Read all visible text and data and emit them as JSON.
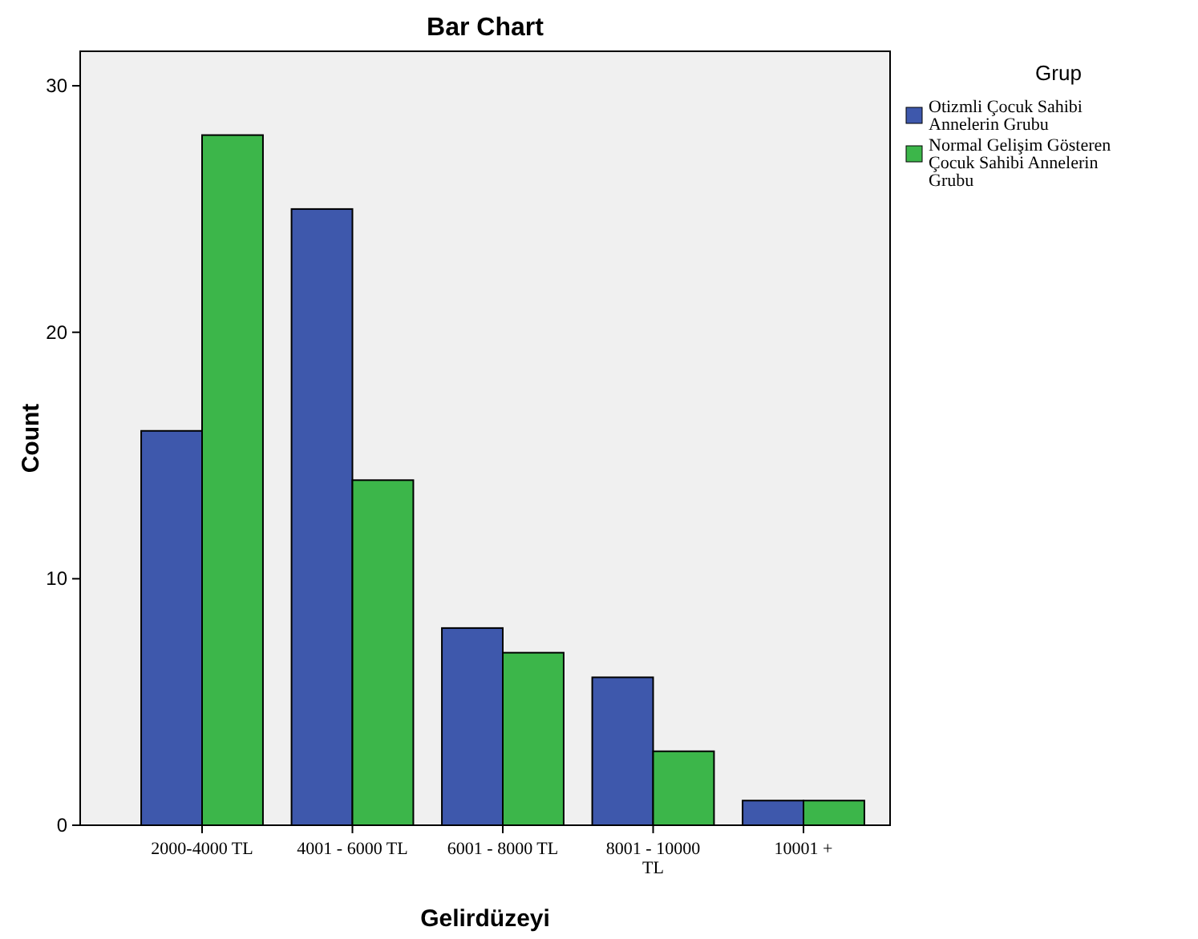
{
  "chart_data": {
    "type": "bar",
    "title": "Bar Chart",
    "xlabel": "Gelirdüzeyi",
    "ylabel": "Count",
    "legend_title": "Grup",
    "categories": [
      "2000-4000 TL",
      "4001 - 6000 TL",
      "6001 - 8000 TL",
      "8001 - 10000 TL",
      "10001 +"
    ],
    "series": [
      {
        "name": "Otizmli Çocuk Sahibi Annelerin Grubu",
        "color": "#3e58ac",
        "values": [
          16,
          25,
          8,
          6,
          1
        ]
      },
      {
        "name": "Normal Gelişim Gösteren Çocuk Sahibi Annelerin Grubu",
        "color": "#3cb64a",
        "values": [
          28,
          14,
          7,
          3,
          1
        ]
      }
    ],
    "ylim": [
      0,
      31.4
    ],
    "yticks": [
      0,
      10,
      20,
      30
    ],
    "grid": false,
    "legend": "right"
  }
}
